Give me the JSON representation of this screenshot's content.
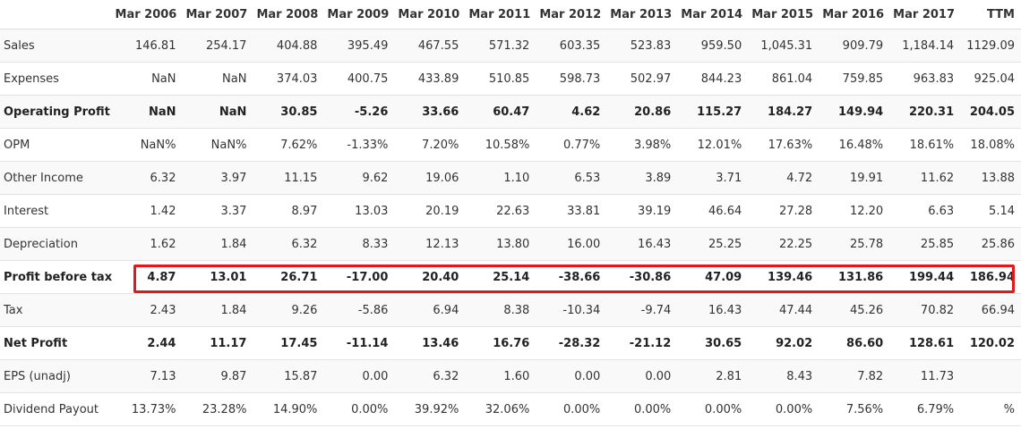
{
  "table": {
    "columns": [
      "",
      "Mar 2006",
      "Mar 2007",
      "Mar 2008",
      "Mar 2009",
      "Mar 2010",
      "Mar 2011",
      "Mar 2012",
      "Mar 2013",
      "Mar 2014",
      "Mar 2015",
      "Mar 2016",
      "Mar 2017",
      "TTM"
    ],
    "rows": [
      {
        "label": "Sales",
        "bold": false,
        "values": [
          "146.81",
          "254.17",
          "404.88",
          "395.49",
          "467.55",
          "571.32",
          "603.35",
          "523.83",
          "959.50",
          "1,045.31",
          "909.79",
          "1,184.14",
          "1129.09"
        ]
      },
      {
        "label": "Expenses",
        "bold": false,
        "values": [
          "NaN",
          "NaN",
          "374.03",
          "400.75",
          "433.89",
          "510.85",
          "598.73",
          "502.97",
          "844.23",
          "861.04",
          "759.85",
          "963.83",
          "925.04"
        ]
      },
      {
        "label": "Operating Profit",
        "bold": true,
        "values": [
          "NaN",
          "NaN",
          "30.85",
          "-5.26",
          "33.66",
          "60.47",
          "4.62",
          "20.86",
          "115.27",
          "184.27",
          "149.94",
          "220.31",
          "204.05"
        ]
      },
      {
        "label": "OPM",
        "bold": false,
        "values": [
          "NaN%",
          "NaN%",
          "7.62%",
          "-1.33%",
          "7.20%",
          "10.58%",
          "0.77%",
          "3.98%",
          "12.01%",
          "17.63%",
          "16.48%",
          "18.61%",
          "18.08%"
        ]
      },
      {
        "label": "Other Income",
        "bold": false,
        "values": [
          "6.32",
          "3.97",
          "11.15",
          "9.62",
          "19.06",
          "1.10",
          "6.53",
          "3.89",
          "3.71",
          "4.72",
          "19.91",
          "11.62",
          "13.88"
        ]
      },
      {
        "label": "Interest",
        "bold": false,
        "values": [
          "1.42",
          "3.37",
          "8.97",
          "13.03",
          "20.19",
          "22.63",
          "33.81",
          "39.19",
          "46.64",
          "27.28",
          "12.20",
          "6.63",
          "5.14"
        ]
      },
      {
        "label": "Depreciation",
        "bold": false,
        "values": [
          "1.62",
          "1.84",
          "6.32",
          "8.33",
          "12.13",
          "13.80",
          "16.00",
          "16.43",
          "25.25",
          "22.25",
          "25.78",
          "25.85",
          "25.86"
        ]
      },
      {
        "label": "Profit before tax",
        "bold": true,
        "values": [
          "4.87",
          "13.01",
          "26.71",
          "-17.00",
          "20.40",
          "25.14",
          "-38.66",
          "-30.86",
          "47.09",
          "139.46",
          "131.86",
          "199.44",
          "186.94"
        ]
      },
      {
        "label": "Tax",
        "bold": false,
        "values": [
          "2.43",
          "1.84",
          "9.26",
          "-5.86",
          "6.94",
          "8.38",
          "-10.34",
          "-9.74",
          "16.43",
          "47.44",
          "45.26",
          "70.82",
          "66.94"
        ]
      },
      {
        "label": "Net Profit",
        "bold": true,
        "values": [
          "2.44",
          "11.17",
          "17.45",
          "-11.14",
          "13.46",
          "16.76",
          "-28.32",
          "-21.12",
          "30.65",
          "92.02",
          "86.60",
          "128.61",
          "120.02"
        ]
      },
      {
        "label": "EPS (unadj)",
        "bold": false,
        "values": [
          "7.13",
          "9.87",
          "15.87",
          "0.00",
          "6.32",
          "1.60",
          "0.00",
          "0.00",
          "2.81",
          "8.43",
          "7.82",
          "11.73",
          ""
        ]
      },
      {
        "label": "Dividend Payout",
        "bold": false,
        "values": [
          "13.73%",
          "23.28%",
          "14.90%",
          "0.00%",
          "39.92%",
          "32.06%",
          "0.00%",
          "0.00%",
          "0.00%",
          "0.00%",
          "7.56%",
          "6.79%",
          "%"
        ]
      }
    ]
  },
  "highlight": {
    "row": "Profit before tax",
    "color": "#e3181b"
  }
}
